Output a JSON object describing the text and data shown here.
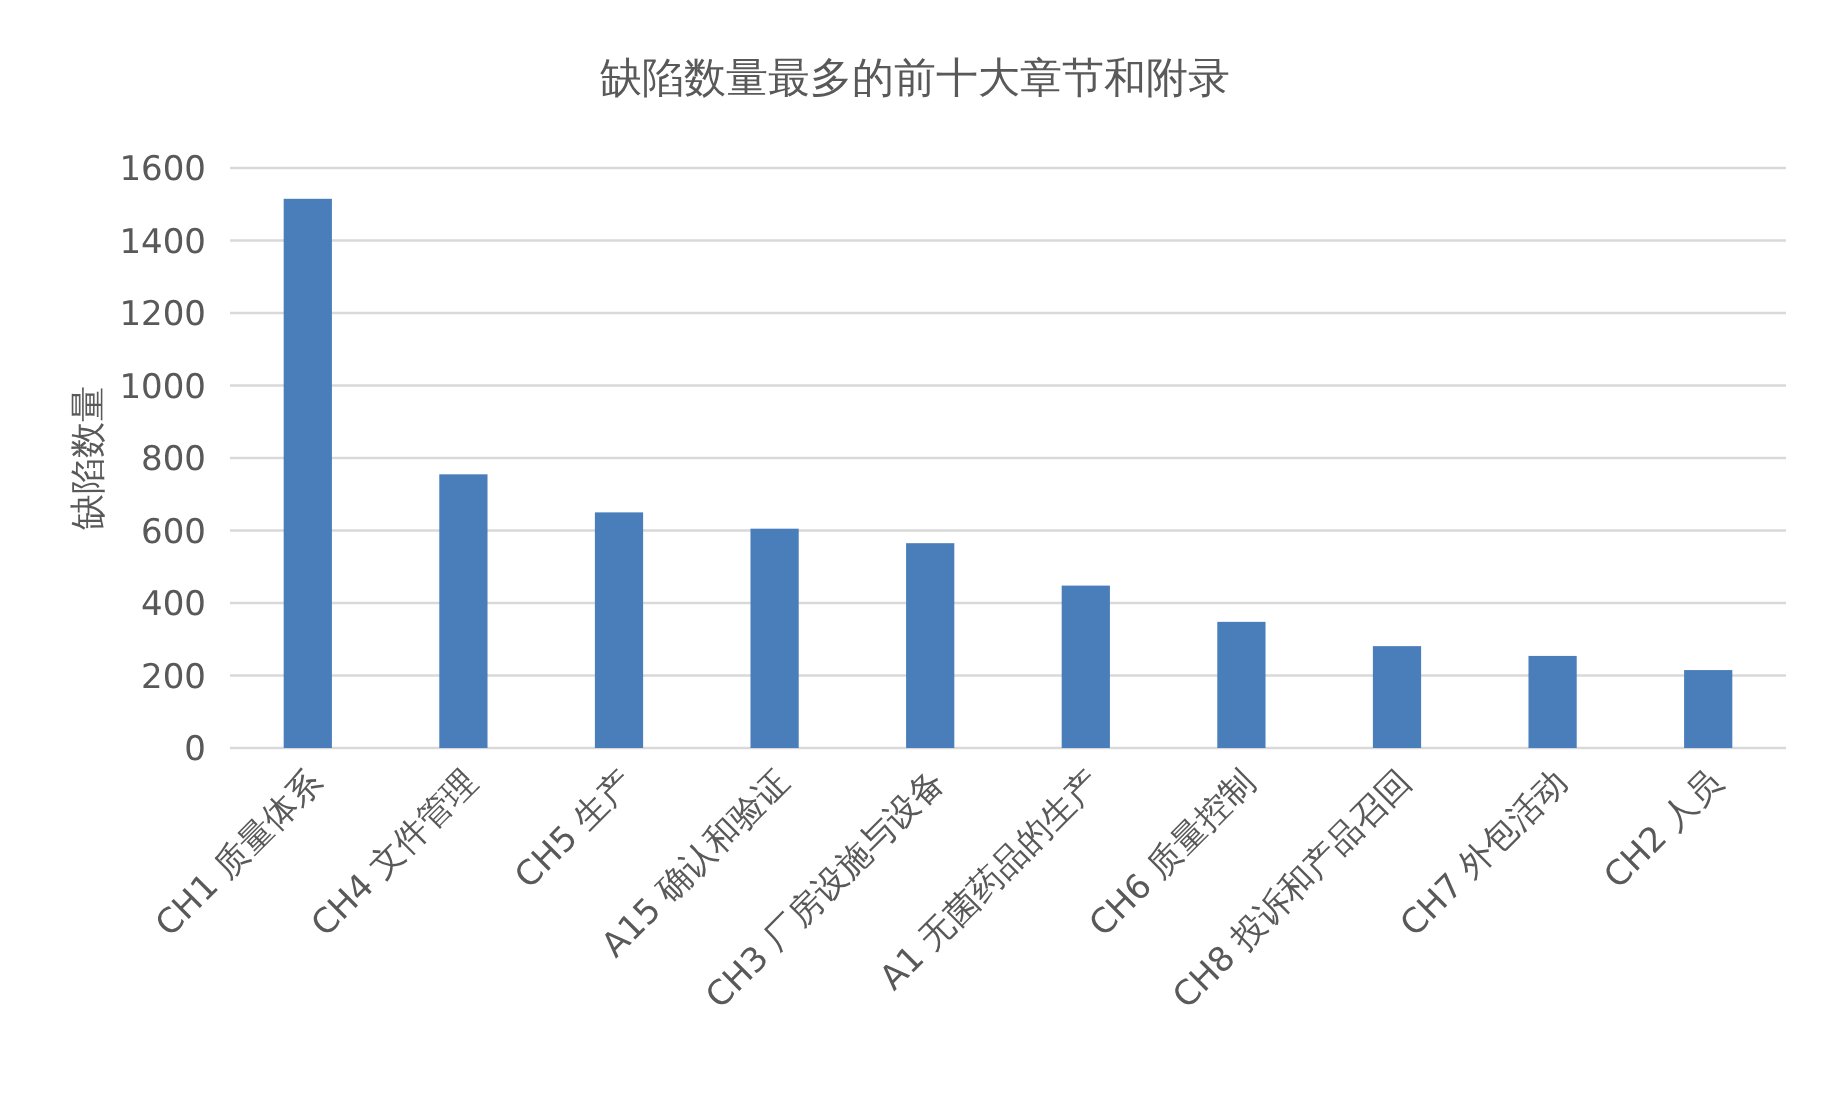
{
  "chart_data": {
    "type": "bar",
    "title": "缺陷数量最多的前十大章节和附录",
    "ylabel": "缺陷数量",
    "categories": [
      "CH1 质量体系",
      "CH4 文件管理",
      "CH5 生产",
      "A15 确认和验证",
      "CH3 厂房设施与设备",
      "A1 无菌药品的生产",
      "CH6 质量控制",
      "CH8 投诉和产品召回",
      "CH7 外包活动",
      "CH2 人员"
    ],
    "values": [
      1515,
      755,
      650,
      605,
      565,
      448,
      348,
      281,
      254,
      215
    ],
    "color": "#4a7ebb",
    "ylim": [
      0,
      1600
    ],
    "yticks": [
      0,
      200,
      400,
      600,
      800,
      1000,
      1200,
      1400,
      1600
    ],
    "grid": "y"
  }
}
